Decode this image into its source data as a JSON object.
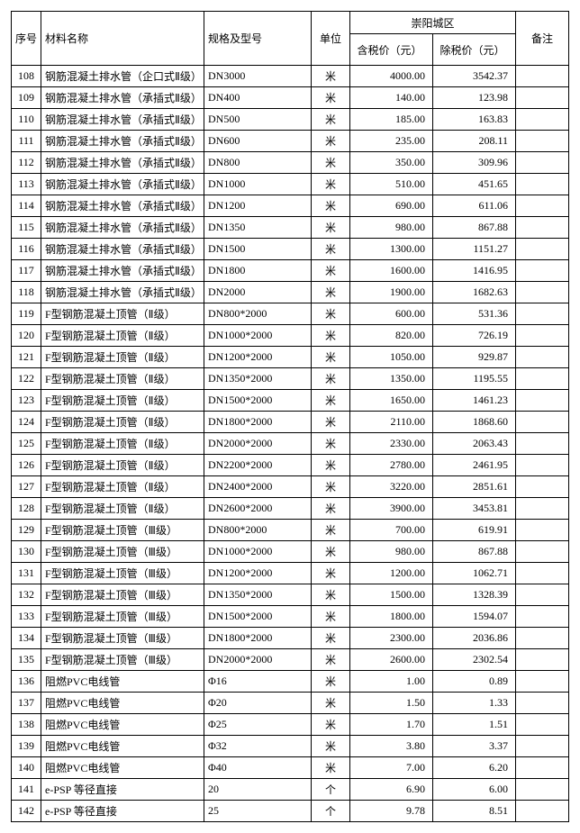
{
  "header": {
    "seq": "序号",
    "name": "材料名称",
    "spec": "规格及型号",
    "unit": "单位",
    "region": "崇阳城区",
    "taxIncl": "含税价（元）",
    "taxExcl": "除税价（元）",
    "remark": "备注"
  },
  "rows": [
    {
      "n": "108",
      "name": "钢筋混凝土排水管（企口式Ⅱ级）",
      "spec": "DN3000",
      "unit": "米",
      "p1": "4000.00",
      "p2": "3542.37",
      "r": ""
    },
    {
      "n": "109",
      "name": "钢筋混凝土排水管（承插式Ⅱ级）",
      "spec": "DN400",
      "unit": "米",
      "p1": "140.00",
      "p2": "123.98",
      "r": ""
    },
    {
      "n": "110",
      "name": "钢筋混凝土排水管（承插式Ⅱ级）",
      "spec": "DN500",
      "unit": "米",
      "p1": "185.00",
      "p2": "163.83",
      "r": ""
    },
    {
      "n": "111",
      "name": "钢筋混凝土排水管（承插式Ⅱ级）",
      "spec": "DN600",
      "unit": "米",
      "p1": "235.00",
      "p2": "208.11",
      "r": ""
    },
    {
      "n": "112",
      "name": "钢筋混凝土排水管（承插式Ⅱ级）",
      "spec": "DN800",
      "unit": "米",
      "p1": "350.00",
      "p2": "309.96",
      "r": ""
    },
    {
      "n": "113",
      "name": "钢筋混凝土排水管（承插式Ⅱ级）",
      "spec": "DN1000",
      "unit": "米",
      "p1": "510.00",
      "p2": "451.65",
      "r": ""
    },
    {
      "n": "114",
      "name": "钢筋混凝土排水管（承插式Ⅱ级）",
      "spec": "DN1200",
      "unit": "米",
      "p1": "690.00",
      "p2": "611.06",
      "r": ""
    },
    {
      "n": "115",
      "name": "钢筋混凝土排水管（承插式Ⅱ级）",
      "spec": "DN1350",
      "unit": "米",
      "p1": "980.00",
      "p2": "867.88",
      "r": ""
    },
    {
      "n": "116",
      "name": "钢筋混凝土排水管（承插式Ⅱ级）",
      "spec": "DN1500",
      "unit": "米",
      "p1": "1300.00",
      "p2": "1151.27",
      "r": ""
    },
    {
      "n": "117",
      "name": "钢筋混凝土排水管（承插式Ⅱ级）",
      "spec": "DN1800",
      "unit": "米",
      "p1": "1600.00",
      "p2": "1416.95",
      "r": ""
    },
    {
      "n": "118",
      "name": "钢筋混凝土排水管（承插式Ⅱ级）",
      "spec": "DN2000",
      "unit": "米",
      "p1": "1900.00",
      "p2": "1682.63",
      "r": ""
    },
    {
      "n": "119",
      "name": "F型钢筋混凝土顶管（Ⅱ级）",
      "spec": "DN800*2000",
      "unit": "米",
      "p1": "600.00",
      "p2": "531.36",
      "r": ""
    },
    {
      "n": "120",
      "name": "F型钢筋混凝土顶管（Ⅱ级）",
      "spec": "DN1000*2000",
      "unit": "米",
      "p1": "820.00",
      "p2": "726.19",
      "r": ""
    },
    {
      "n": "121",
      "name": "F型钢筋混凝土顶管（Ⅱ级）",
      "spec": "DN1200*2000",
      "unit": "米",
      "p1": "1050.00",
      "p2": "929.87",
      "r": ""
    },
    {
      "n": "122",
      "name": "F型钢筋混凝土顶管（Ⅱ级）",
      "spec": "DN1350*2000",
      "unit": "米",
      "p1": "1350.00",
      "p2": "1195.55",
      "r": ""
    },
    {
      "n": "123",
      "name": "F型钢筋混凝土顶管（Ⅱ级）",
      "spec": "DN1500*2000",
      "unit": "米",
      "p1": "1650.00",
      "p2": "1461.23",
      "r": ""
    },
    {
      "n": "124",
      "name": "F型钢筋混凝土顶管（Ⅱ级）",
      "spec": "DN1800*2000",
      "unit": "米",
      "p1": "2110.00",
      "p2": "1868.60",
      "r": ""
    },
    {
      "n": "125",
      "name": "F型钢筋混凝土顶管（Ⅱ级）",
      "spec": "DN2000*2000",
      "unit": "米",
      "p1": "2330.00",
      "p2": "2063.43",
      "r": ""
    },
    {
      "n": "126",
      "name": "F型钢筋混凝土顶管（Ⅱ级）",
      "spec": "DN2200*2000",
      "unit": "米",
      "p1": "2780.00",
      "p2": "2461.95",
      "r": ""
    },
    {
      "n": "127",
      "name": "F型钢筋混凝土顶管（Ⅱ级）",
      "spec": "DN2400*2000",
      "unit": "米",
      "p1": "3220.00",
      "p2": "2851.61",
      "r": ""
    },
    {
      "n": "128",
      "name": "F型钢筋混凝土顶管（Ⅱ级）",
      "spec": "DN2600*2000",
      "unit": "米",
      "p1": "3900.00",
      "p2": "3453.81",
      "r": ""
    },
    {
      "n": "129",
      "name": "F型钢筋混凝土顶管（Ⅲ级）",
      "spec": "DN800*2000",
      "unit": "米",
      "p1": "700.00",
      "p2": "619.91",
      "r": ""
    },
    {
      "n": "130",
      "name": "F型钢筋混凝土顶管（Ⅲ级）",
      "spec": "DN1000*2000",
      "unit": "米",
      "p1": "980.00",
      "p2": "867.88",
      "r": ""
    },
    {
      "n": "131",
      "name": "F型钢筋混凝土顶管（Ⅲ级）",
      "spec": "DN1200*2000",
      "unit": "米",
      "p1": "1200.00",
      "p2": "1062.71",
      "r": ""
    },
    {
      "n": "132",
      "name": "F型钢筋混凝土顶管（Ⅲ级）",
      "spec": "DN1350*2000",
      "unit": "米",
      "p1": "1500.00",
      "p2": "1328.39",
      "r": ""
    },
    {
      "n": "133",
      "name": "F型钢筋混凝土顶管（Ⅲ级）",
      "spec": "DN1500*2000",
      "unit": "米",
      "p1": "1800.00",
      "p2": "1594.07",
      "r": ""
    },
    {
      "n": "134",
      "name": "F型钢筋混凝土顶管（Ⅲ级）",
      "spec": "DN1800*2000",
      "unit": "米",
      "p1": "2300.00",
      "p2": "2036.86",
      "r": ""
    },
    {
      "n": "135",
      "name": "F型钢筋混凝土顶管（Ⅲ级）",
      "spec": "DN2000*2000",
      "unit": "米",
      "p1": "2600.00",
      "p2": "2302.54",
      "r": ""
    },
    {
      "n": "136",
      "name": "阻燃PVC电线管",
      "spec": "Φ16",
      "unit": "米",
      "p1": "1.00",
      "p2": "0.89",
      "r": ""
    },
    {
      "n": "137",
      "name": "阻燃PVC电线管",
      "spec": "Φ20",
      "unit": "米",
      "p1": "1.50",
      "p2": "1.33",
      "r": ""
    },
    {
      "n": "138",
      "name": "阻燃PVC电线管",
      "spec": "Φ25",
      "unit": "米",
      "p1": "1.70",
      "p2": "1.51",
      "r": ""
    },
    {
      "n": "139",
      "name": "阻燃PVC电线管",
      "spec": "Φ32",
      "unit": "米",
      "p1": "3.80",
      "p2": "3.37",
      "r": ""
    },
    {
      "n": "140",
      "name": "阻燃PVC电线管",
      "spec": "Φ40",
      "unit": "米",
      "p1": "7.00",
      "p2": "6.20",
      "r": ""
    },
    {
      "n": "141",
      "name": "e-PSP 等径直接",
      "spec": "20",
      "unit": "个",
      "p1": "6.90",
      "p2": "6.00",
      "r": ""
    },
    {
      "n": "142",
      "name": "e-PSP 等径直接",
      "spec": "25",
      "unit": "个",
      "p1": "9.78",
      "p2": "8.51",
      "r": ""
    }
  ]
}
